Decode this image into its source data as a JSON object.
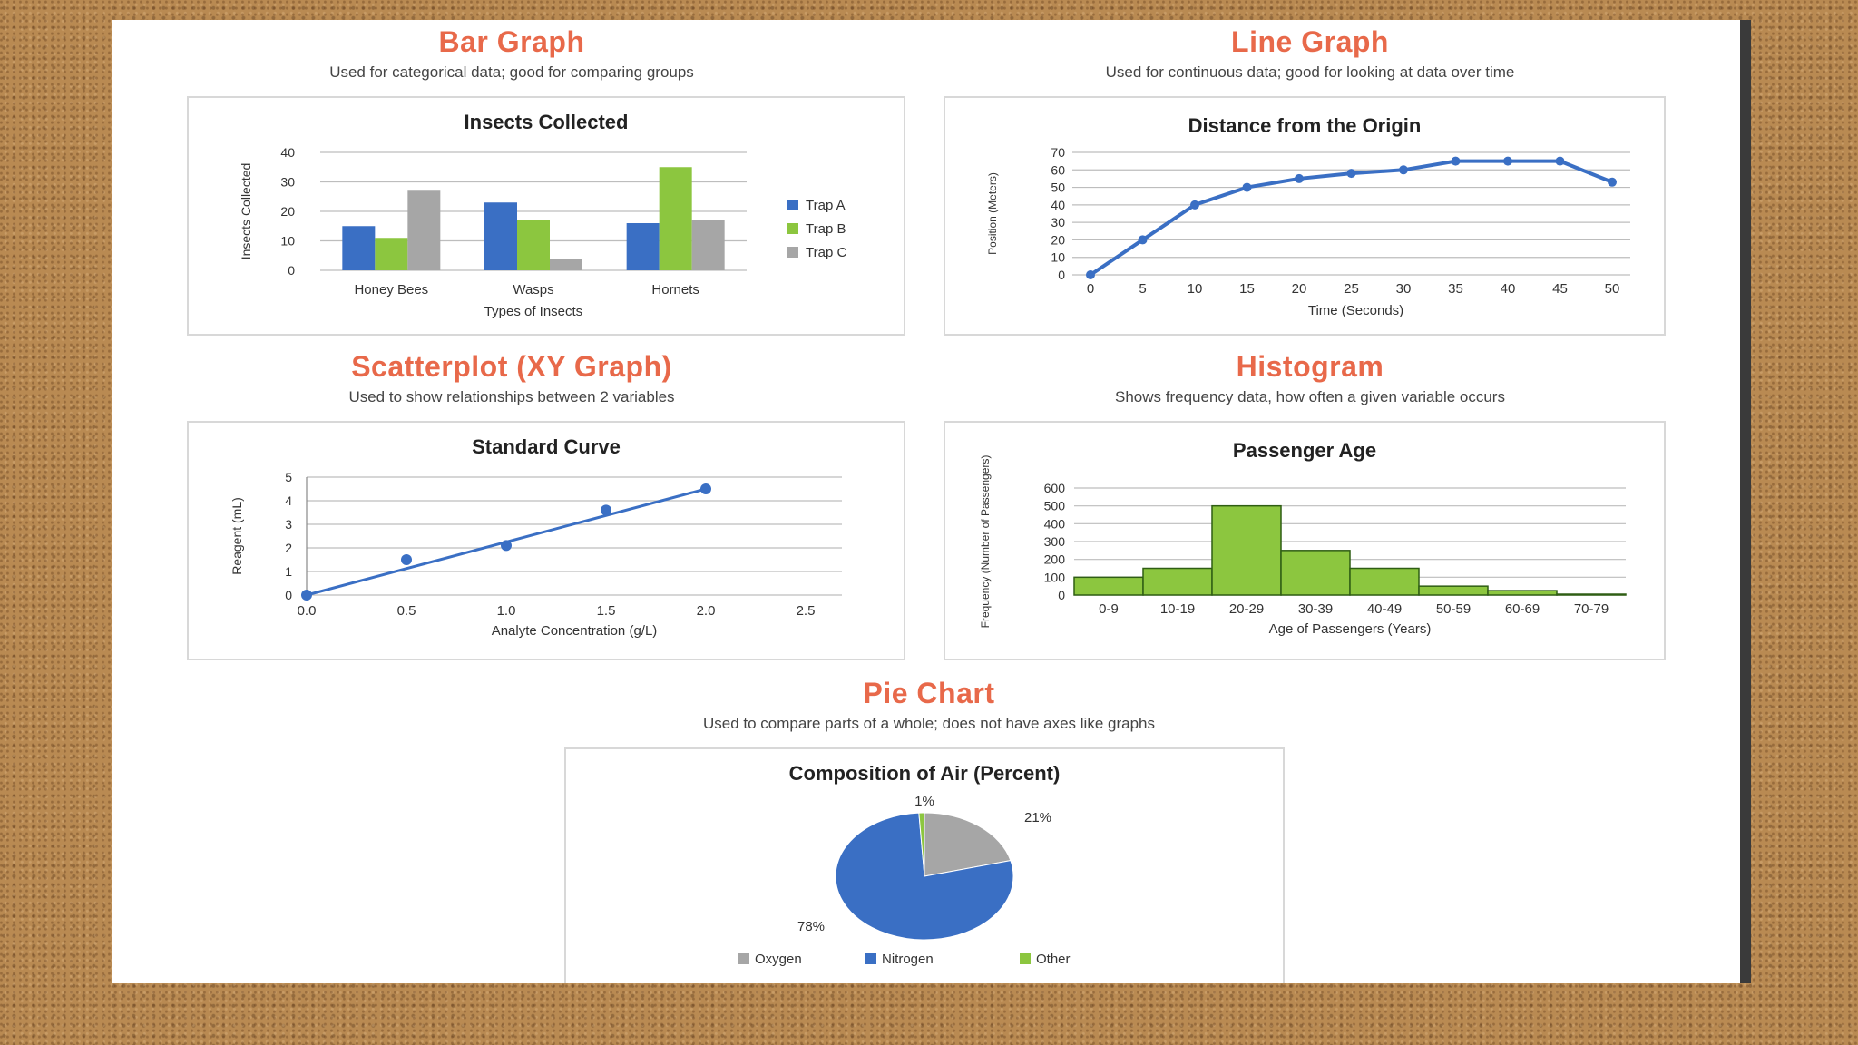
{
  "sections": {
    "bar": {
      "title": "Bar Graph",
      "subtitle": "Used for categorical data; good for comparing groups"
    },
    "line": {
      "title": "Line Graph",
      "subtitle": "Used for continuous data; good for looking at data over time"
    },
    "scatter": {
      "title": "Scatterplot (XY Graph)",
      "subtitle": "Used to show relationships between 2 variables"
    },
    "hist": {
      "title": "Histogram",
      "subtitle": "Shows frequency data, how often a given variable occurs"
    },
    "pie": {
      "title": "Pie Chart",
      "subtitle": "Used to compare parts of a whole; does not have axes like graphs"
    }
  },
  "colors": {
    "blue": "#3a6fc4",
    "green": "#8cc63f",
    "gray": "#a6a6a6",
    "title": "#e8694a"
  },
  "chart_data": [
    {
      "type": "bar",
      "title": "Insects Collected",
      "xlabel": "Types of Insects",
      "ylabel": "Insects Collected",
      "categories": [
        "Honey Bees",
        "Wasps",
        "Hornets"
      ],
      "series": [
        {
          "name": "Trap A",
          "values": [
            15,
            23,
            16
          ]
        },
        {
          "name": "Trap B",
          "values": [
            11,
            17,
            35
          ]
        },
        {
          "name": "Trap C",
          "values": [
            27,
            4,
            17
          ]
        }
      ],
      "ylim": [
        0,
        40
      ],
      "yticks": [
        0,
        10,
        20,
        30,
        40
      ],
      "grid": true,
      "legend": "right"
    },
    {
      "type": "line",
      "title": "Distance from the Origin",
      "xlabel": "Time (Seconds)",
      "ylabel": "Position (Meters)",
      "x": [
        0,
        5,
        10,
        15,
        20,
        25,
        30,
        35,
        40,
        45,
        50
      ],
      "y": [
        0,
        20,
        40,
        50,
        55,
        58,
        60,
        65,
        65,
        65,
        53
      ],
      "xlim": [
        0,
        50
      ],
      "ylim": [
        0,
        70
      ],
      "xticks": [
        0,
        5,
        10,
        15,
        20,
        25,
        30,
        35,
        40,
        45,
        50
      ],
      "yticks": [
        0,
        10,
        20,
        30,
        40,
        50,
        60,
        70
      ],
      "grid": true
    },
    {
      "type": "scatter",
      "title": "Standard Curve",
      "xlabel": "Analyte Concentration (g/L)",
      "ylabel": "Reagent (mL)",
      "x": [
        0.0,
        0.5,
        1.0,
        1.5,
        2.0
      ],
      "y": [
        0.0,
        1.5,
        2.1,
        3.6,
        4.5
      ],
      "trendline": [
        [
          0.0,
          0.0
        ],
        [
          2.0,
          4.5
        ]
      ],
      "xlim": [
        0,
        2.5
      ],
      "ylim": [
        0,
        5
      ],
      "xticks": [
        "0.0",
        "0.5",
        "1.0",
        "1.5",
        "2.0",
        "2.5"
      ],
      "yticks": [
        0,
        1,
        2,
        3,
        4,
        5
      ],
      "grid": true
    },
    {
      "type": "bar",
      "title": "Passenger Age",
      "xlabel": "Age of Passengers (Years)",
      "ylabel": "Frequency (Number of Passengers)",
      "categories": [
        "0-9",
        "10-19",
        "20-29",
        "30-39",
        "40-49",
        "50-59",
        "60-69",
        "70-79"
      ],
      "values": [
        100,
        150,
        500,
        250,
        150,
        50,
        25,
        5
      ],
      "ylim": [
        0,
        600
      ],
      "yticks": [
        0,
        100,
        200,
        300,
        400,
        500,
        600
      ],
      "grid": true
    },
    {
      "type": "pie",
      "title": "Composition of Air (Percent)",
      "slices": [
        {
          "name": "Oxygen",
          "value": 21,
          "label": "21%"
        },
        {
          "name": "Nitrogen",
          "value": 78,
          "label": "78%"
        },
        {
          "name": "Other",
          "value": 1,
          "label": "1%"
        }
      ],
      "legend": "bottom"
    }
  ]
}
